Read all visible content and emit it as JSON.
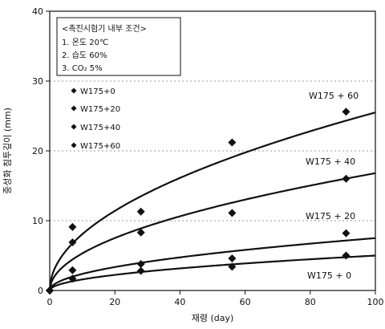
{
  "chart_data": {
    "type": "scatter",
    "title": "",
    "xlabel": "재령 (day)",
    "ylabel": "중성화 침투깊이 (mm)",
    "xlim": [
      0,
      100
    ],
    "ylim": [
      0,
      40
    ],
    "xticks": [
      0,
      20,
      40,
      60,
      80,
      100
    ],
    "yticks": [
      0,
      10,
      20,
      30,
      40
    ],
    "grid": "horizontal dashed at y=10,20,30",
    "legend_position": "upper-left",
    "conditions": {
      "header": "<촉진시험기 내부 조건>",
      "items": [
        "1. 온도 20℃",
        "2. 습도 60%",
        "3. CO₂ 5%"
      ]
    },
    "legend": [
      "W175+0",
      "W175+20",
      "W175+40",
      "W175+60"
    ],
    "series": [
      {
        "name": "W175+0",
        "label": "W175 + 0",
        "x": [
          0,
          7,
          28,
          56,
          91
        ],
        "y": [
          0,
          1.7,
          2.8,
          3.4,
          5.0
        ],
        "fit_coef": 0.5
      },
      {
        "name": "W175+20",
        "label": "W175 + 20",
        "x": [
          0,
          7,
          28,
          56,
          91
        ],
        "y": [
          0,
          2.9,
          3.8,
          4.6,
          8.2
        ],
        "fit_coef": 0.75
      },
      {
        "name": "W175+40",
        "label": "W175 + 40",
        "x": [
          0,
          7,
          28,
          56,
          91
        ],
        "y": [
          0,
          6.9,
          8.3,
          11.1,
          16.0
        ],
        "fit_coef": 1.68
      },
      {
        "name": "W175+60",
        "label": "W175 + 60",
        "x": [
          0,
          7,
          28,
          56,
          91
        ],
        "y": [
          0,
          9.1,
          11.3,
          21.2,
          25.6
        ],
        "fit_coef": 2.55
      }
    ]
  }
}
